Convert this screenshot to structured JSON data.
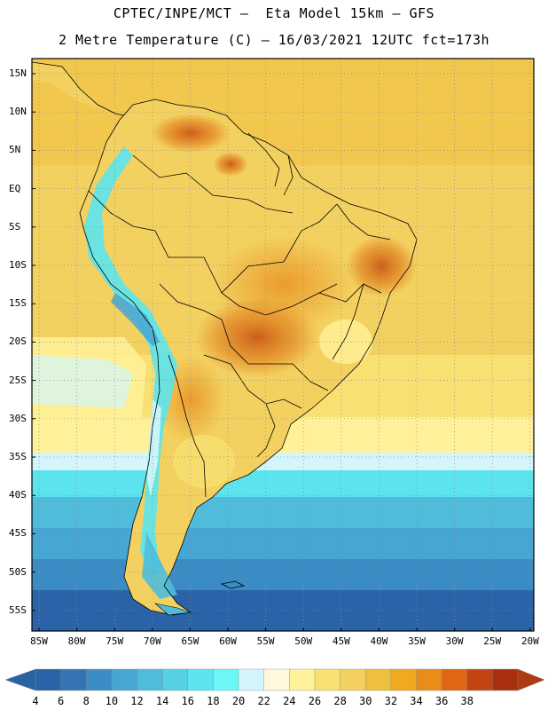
{
  "header": {
    "line1": "CPTEC/INPE/MCT —  Eta Model 15km — GFS",
    "line2": "2 Metre Temperature (C) — 16/03/2021 12UTC fct=173h"
  },
  "map": {
    "lat_labels": [
      "15N",
      "10N",
      "5N",
      "EQ",
      "5S",
      "10S",
      "15S",
      "20S",
      "25S",
      "30S",
      "35S",
      "40S",
      "45S",
      "50S",
      "55S"
    ],
    "lon_labels": [
      "85W",
      "80W",
      "75W",
      "70W",
      "65W",
      "60W",
      "55W",
      "50W",
      "45W",
      "40W",
      "35W",
      "30W",
      "25W",
      "20W"
    ]
  },
  "legend": {
    "values": [
      "4",
      "6",
      "8",
      "10",
      "12",
      "14",
      "16",
      "18",
      "20",
      "22",
      "24",
      "26",
      "28",
      "30",
      "32",
      "34",
      "36",
      "38"
    ],
    "colors": [
      "#2b63a8",
      "#3474b4",
      "#3b8cc4",
      "#46a6d4",
      "#4fbcdc",
      "#55d0e4",
      "#5ce4ee",
      "#6cf6f6",
      "#d2f6fb",
      "#fff8dc",
      "#fff199",
      "#f8e072",
      "#f3d160",
      "#eec03f",
      "#f1a91f",
      "#ea8c1a",
      "#e06616",
      "#c24412",
      "#a8300e"
    ],
    "left_arrow_color": "#2a62a4",
    "right_arrow_color": "#b03a10"
  }
}
